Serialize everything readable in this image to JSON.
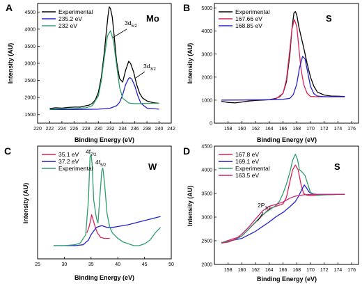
{
  "chart_data": [
    {
      "panel_label": "A",
      "element_label": "Mo",
      "type": "line",
      "xlabel": "Binding Energy (eV)",
      "ylabel": "Intensity (AU)",
      "xlim": [
        220,
        242
      ],
      "ylim": [
        1250,
        4750
      ],
      "x_ticks": [
        "220",
        "222",
        "224",
        "226",
        "228",
        "230",
        "232",
        "234",
        "236",
        "238",
        "240",
        "242"
      ],
      "y_ticks": [
        "1500",
        "2000",
        "2500",
        "3000",
        "3500",
        "4000",
        "4500"
      ],
      "legend": {
        "position": "top-left",
        "entries": [
          "Experimental",
          "235.2 eV",
          "232 eV"
        ]
      },
      "annotations": [
        {
          "text": "3d",
          "sub": "5/2"
        },
        {
          "text": "3d",
          "sub": "3/2"
        }
      ],
      "series": [
        {
          "name": "Experimental",
          "color": "#000000",
          "x": [
            222,
            223,
            224,
            225,
            226,
            227,
            228,
            228.5,
            229,
            229.5,
            230,
            230.5,
            231,
            231.3,
            231.6,
            231.8,
            232,
            232.3,
            232.6,
            233,
            233.5,
            234,
            234.5,
            235,
            235.3,
            235.8,
            236.3,
            236.8,
            237.3,
            238,
            239,
            240
          ],
          "y": [
            1680,
            1700,
            1690,
            1710,
            1720,
            1720,
            1760,
            1780,
            1830,
            1930,
            2150,
            2600,
            3350,
            3900,
            4400,
            4650,
            4600,
            4350,
            3800,
            3050,
            2550,
            2450,
            2800,
            3060,
            3000,
            2750,
            2380,
            2120,
            1980,
            1900,
            1850,
            1830
          ]
        },
        {
          "name": "235.2 eV",
          "color": "#2222cc",
          "x": [
            222,
            226,
            230,
            232,
            233,
            233.5,
            234,
            234.5,
            235,
            235.2,
            235.5,
            236,
            236.5,
            237,
            238,
            240
          ],
          "y": [
            1650,
            1650,
            1660,
            1690,
            1760,
            1860,
            2080,
            2380,
            2560,
            2580,
            2540,
            2340,
            2050,
            1830,
            1690,
            1660
          ]
        },
        {
          "name": "232 eV",
          "color": "#2e9e6a",
          "x": [
            222,
            226,
            228,
            229,
            230,
            230.5,
            231,
            231.5,
            232,
            232.5,
            233,
            233.5,
            234,
            235,
            236,
            238,
            240
          ],
          "y": [
            1660,
            1680,
            1700,
            1760,
            2050,
            2500,
            3200,
            3800,
            3950,
            3650,
            2950,
            2300,
            1980,
            1840,
            1820,
            1830,
            1830
          ]
        }
      ]
    },
    {
      "panel_label": "B",
      "element_label": "S",
      "type": "line",
      "xlabel": "Binding Energy (eV)",
      "ylabel": "Intensity (AU)",
      "xlim": [
        156,
        177
      ],
      "ylim": [
        0,
        5200
      ],
      "x_ticks": [
        "158",
        "160",
        "162",
        "164",
        "166",
        "168",
        "170",
        "172",
        "174",
        "176"
      ],
      "y_ticks": [
        "0",
        "1000",
        "2000",
        "3000",
        "4000",
        "5000"
      ],
      "legend": {
        "position": "top-left",
        "entries": [
          "Experimental",
          "167.66 eV",
          "168.85 eV"
        ]
      },
      "series": [
        {
          "name": "Experimental",
          "color": "#000000",
          "x": [
            157,
            158,
            159,
            160,
            161,
            162,
            163,
            164,
            165,
            165.5,
            166,
            166.5,
            167,
            167.3,
            167.6,
            167.8,
            168,
            168.3,
            168.6,
            169,
            169.5,
            170,
            170.5,
            171,
            172,
            173,
            174,
            175
          ],
          "y": [
            950,
            900,
            880,
            920,
            960,
            990,
            1000,
            1020,
            1080,
            1150,
            1300,
            1800,
            3000,
            4100,
            4800,
            4850,
            4700,
            4200,
            3800,
            3300,
            2600,
            2000,
            1600,
            1350,
            1220,
            1180,
            1170,
            1160
          ]
        },
        {
          "name": "167.66 eV",
          "color": "#dd2255",
          "x": [
            157,
            164,
            165,
            166,
            166.5,
            167,
            167.3,
            167.66,
            168,
            168.3,
            168.6,
            169,
            169.5,
            170,
            171,
            175
          ],
          "y": [
            1000,
            1020,
            1060,
            1300,
            1900,
            3200,
            4100,
            4500,
            4200,
            3300,
            2400,
            1700,
            1300,
            1160,
            1150,
            1150
          ]
        },
        {
          "name": "168.85 eV",
          "color": "#2222cc",
          "x": [
            157,
            164,
            166,
            167,
            167.5,
            168,
            168.4,
            168.85,
            169.2,
            169.6,
            170,
            170.5,
            171,
            172,
            175
          ],
          "y": [
            1000,
            1020,
            1040,
            1080,
            1250,
            1700,
            2400,
            2900,
            2800,
            2200,
            1600,
            1280,
            1180,
            1150,
            1150
          ]
        }
      ]
    },
    {
      "panel_label": "C",
      "element_label": "W",
      "type": "line",
      "xlabel": "Binding Energy (eV)",
      "ylabel": "Intensity (AU)",
      "xlim": [
        25,
        50
      ],
      "y_ticks": [],
      "x_ticks": [
        "25",
        "30",
        "35",
        "40",
        "45",
        "50"
      ],
      "legend": {
        "position": "top-left",
        "entries": [
          "35.1 eV",
          "37.2 eV",
          "Experimental"
        ]
      },
      "annotations": [
        {
          "text": "4f",
          "sub": "7/2"
        },
        {
          "text": "4f",
          "sub": "5/2"
        }
      ],
      "series": [
        {
          "name": "35.1 eV",
          "color": "#dd2255",
          "x": [
            34.2,
            34.6,
            35,
            35.1,
            35.4,
            35.8,
            36.2,
            36.8,
            37.5,
            38.5
          ],
          "y": [
            0.14,
            0.2,
            0.3,
            0.34,
            0.28,
            0.2,
            0.14,
            0.09,
            0.08,
            0.08
          ]
        },
        {
          "name": "37.2 eV",
          "color": "#2222cc",
          "x": [
            28,
            32,
            33.5,
            34.5,
            35,
            35.5,
            36,
            36.5,
            37,
            37.5,
            38,
            39,
            40,
            42,
            44,
            46,
            48
          ],
          "y": [
            0.0,
            0.0,
            0.01,
            0.06,
            0.12,
            0.16,
            0.2,
            0.21,
            0.22,
            0.21,
            0.2,
            0.2,
            0.21,
            0.23,
            0.26,
            0.29,
            0.32
          ]
        },
        {
          "name": "Experimental",
          "color": "#2e9e6a",
          "x": [
            28,
            30,
            32,
            33,
            34,
            34.5,
            34.8,
            35,
            35.2,
            35.5,
            36,
            36.3,
            36.6,
            37,
            37.2,
            37.5,
            38,
            38.5,
            39,
            40,
            41,
            42,
            43,
            44,
            45,
            46,
            47,
            48
          ],
          "y": [
            0.0,
            0.0,
            0.01,
            0.03,
            0.12,
            0.5,
            0.97,
            1.0,
            0.9,
            0.5,
            0.3,
            0.25,
            0.5,
            0.82,
            0.85,
            0.7,
            0.35,
            0.2,
            0.14,
            0.08,
            0.04,
            0.02,
            0.0,
            0.0,
            0.02,
            0.06,
            0.14,
            0.2
          ]
        }
      ]
    },
    {
      "panel_label": "D",
      "element_label": "S",
      "type": "line",
      "xlabel": "Binding Energy (eV)",
      "ylabel": "Intensity (AU)",
      "xlim": [
        156,
        177
      ],
      "ylim": [
        2000,
        4500
      ],
      "x_ticks": [
        "158",
        "160",
        "162",
        "164",
        "166",
        "168",
        "170",
        "172",
        "174",
        "176"
      ],
      "y_ticks": [
        "2000",
        "2500",
        "3000",
        "3500",
        "4000",
        "4500"
      ],
      "legend": {
        "position": "top-left",
        "entries": [
          "167.8 eV",
          "169.1 eV",
          "Experimental",
          "163.5 eV"
        ]
      },
      "annotations": [
        {
          "text": "2P",
          "sub": "3/2"
        }
      ],
      "series": [
        {
          "name": "167.8 eV",
          "color": "#dd2255",
          "x": [
            157,
            160,
            164,
            165,
            166,
            166.5,
            167,
            167.4,
            167.8,
            168.2,
            168.6,
            169,
            169.5,
            170,
            171,
            172,
            173,
            174,
            175
          ],
          "y": [
            2460,
            2600,
            3180,
            3230,
            3280,
            3420,
            3750,
            4000,
            4100,
            4000,
            3700,
            3500,
            3460,
            3460,
            3460,
            3470,
            3475,
            3480,
            3480
          ]
        },
        {
          "name": "169.1 eV",
          "color": "#2222cc",
          "x": [
            157,
            160,
            162,
            164,
            165,
            166,
            167,
            167.8,
            168.3,
            168.8,
            169.1,
            169.4,
            169.8,
            170.3,
            171,
            172,
            174,
            175
          ],
          "y": [
            2460,
            2550,
            2700,
            2900,
            3010,
            3100,
            3220,
            3330,
            3450,
            3600,
            3680,
            3620,
            3530,
            3490,
            3480,
            3480,
            3480,
            3480
          ]
        },
        {
          "name": "Experimental",
          "color": "#2e9e6a",
          "x": [
            157,
            159,
            160,
            161,
            162,
            163,
            164,
            165,
            165.5,
            166,
            166.5,
            167,
            167.4,
            167.8,
            168.1,
            168.4,
            168.8,
            169.2,
            169.6,
            170,
            171,
            172,
            173,
            174,
            175
          ],
          "y": [
            2460,
            2520,
            2600,
            2750,
            2900,
            3050,
            3150,
            3250,
            3340,
            3500,
            3700,
            3950,
            4200,
            4330,
            4220,
            4000,
            3950,
            3880,
            3700,
            3520,
            3460,
            3470,
            3475,
            3480,
            3480
          ]
        },
        {
          "name": "163.5 eV",
          "color": "#cc2277",
          "x": [
            157,
            158,
            159,
            160,
            161,
            162,
            163,
            164,
            165,
            166,
            166.5,
            167,
            167.5,
            168,
            169,
            170,
            172,
            175
          ],
          "y": [
            2450,
            2470,
            2530,
            2640,
            2790,
            2960,
            3130,
            3230,
            3270,
            3320,
            3360,
            3400,
            3430,
            3450,
            3470,
            3480,
            3480,
            3480
          ]
        }
      ]
    }
  ]
}
